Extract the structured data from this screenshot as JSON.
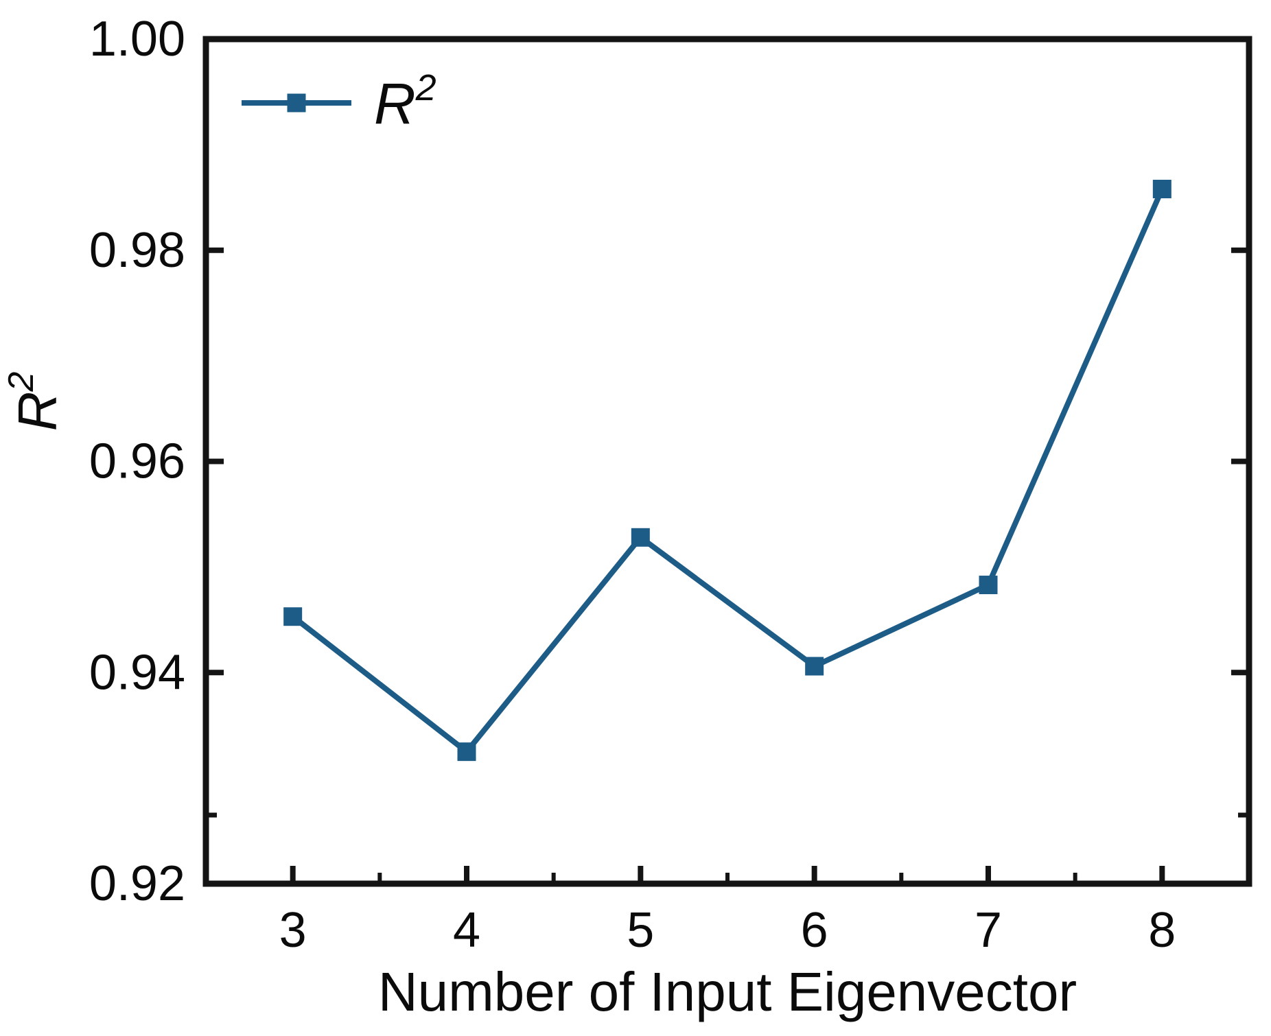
{
  "chart_data": {
    "type": "line",
    "series": [
      {
        "name": "R²",
        "x": [
          3,
          4,
          5,
          6,
          7,
          8
        ],
        "values": [
          0.9453,
          0.9325,
          0.9528,
          0.9406,
          0.9483,
          0.9858
        ],
        "marker": "square",
        "color": "#1e5c88"
      }
    ],
    "title": "",
    "xlabel": "Number of Input Eigenvector",
    "ylabel": "R²",
    "xlim": [
      2.5,
      8.5
    ],
    "ylim": [
      0.92,
      1.0
    ],
    "x_ticks": [
      3,
      4,
      5,
      6,
      7,
      8
    ],
    "x_tick_labels": [
      "3",
      "4",
      "5",
      "6",
      "7",
      "8"
    ],
    "x_minor_ticks": [
      3.5,
      4.5,
      5.5,
      6.5,
      7.5
    ],
    "y_ticks": [
      0.92,
      0.94,
      0.96,
      0.98,
      1.0
    ],
    "y_tick_labels": [
      "0.92",
      "0.94",
      "0.96",
      "0.98",
      "1.00"
    ],
    "y_minor_ticks": [
      0.9265
    ],
    "grid": false,
    "legend": {
      "label": "R²",
      "position": "top-left"
    },
    "frame_color": "#141414",
    "text_color": "#0b0b0b"
  }
}
